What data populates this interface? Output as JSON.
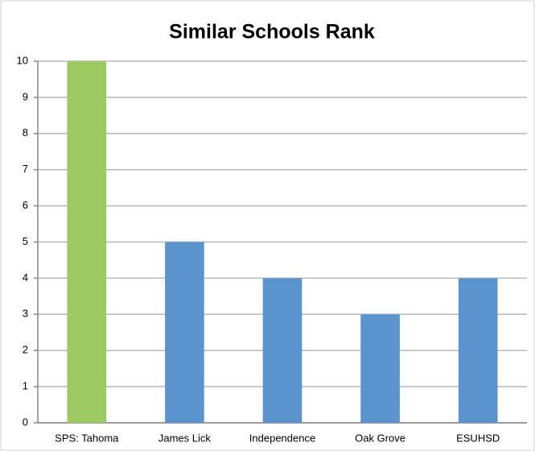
{
  "chart_data": {
    "type": "bar",
    "title": "Similar Schools Rank",
    "categories": [
      "SPS: Tahoma",
      "James Lick",
      "Independence",
      "Oak Grove",
      "ESUHSD"
    ],
    "values": [
      10,
      5,
      4,
      3,
      4
    ],
    "colors": [
      "#9dc962",
      "#5b93cd",
      "#5b93cd",
      "#5b93cd",
      "#5b93cd"
    ],
    "ylim": [
      0,
      10
    ],
    "yticks": [
      0,
      1,
      2,
      3,
      4,
      5,
      6,
      7,
      8,
      9,
      10
    ],
    "grid": true
  }
}
